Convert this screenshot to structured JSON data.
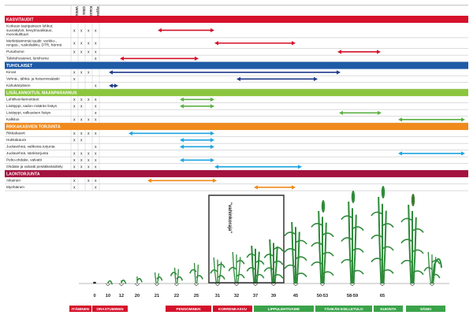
{
  "columns": [
    "Vehnä",
    "Ohra",
    "Kaura",
    "Syysviljat"
  ],
  "colors": {
    "kasvitaudit": "#d5112b",
    "tuholaiset": "#1f5aa6",
    "lisalannoitus": "#8cc63f",
    "rikkakasvien": "#f08a1c",
    "laontorjunta": "#a4123f",
    "arrow_red": "#d5112b",
    "arrow_navy": "#1f3a8a",
    "arrow_green": "#5bb043",
    "arrow_cyan": "#1ea5e0",
    "arrow_orange": "#f08a1c",
    "plant_green": "#2e8b3a"
  },
  "sections": [
    {
      "title": "KASVITAUDIT",
      "color_key": "kasvitaudit",
      "rows": [
        {
          "label": "Korkean tautipaineen lohkot:",
          "sub": [
            "suorakylvö, kevytmuokkaus,",
            "monokulttuuri"
          ],
          "marks": [
            1,
            1,
            1,
            1
          ],
          "arrows": [
            {
              "from": 200,
              "to": 272,
              "color": "arrow_red"
            }
          ]
        },
        {
          "label": "Merkittävimmät taudit: verkko-,",
          "sub": [
            "rengas-, ruskolaikku, DTR, härmä"
          ],
          "marks": [
            1,
            1,
            1,
            1
          ],
          "arrows": [
            {
              "from": 272,
              "to": 375,
              "color": "arrow_red"
            }
          ]
        },
        {
          "label": "Punahome",
          "sub": [],
          "marks": [
            1,
            1,
            1,
            1
          ],
          "arrows": [
            {
              "from": 428,
              "to": 483,
              "color": "arrow_red"
            }
          ]
        },
        {
          "label": "Talvituhosienet, lumihome",
          "sub": [],
          "marks": [
            0,
            0,
            0,
            1
          ],
          "arrows": [
            {
              "from": 152,
              "to": 252,
              "color": "arrow_red"
            }
          ]
        }
      ]
    },
    {
      "title": "TUHOLAISET",
      "color_key": "tuholaiset",
      "rows": [
        {
          "label": "Kirvat",
          "sub": [],
          "marks": [
            1,
            1,
            1,
            0
          ],
          "arrows": [
            {
              "from": 138,
              "to": 432,
              "color": "arrow_navy"
            }
          ]
        },
        {
          "label": "Vehnä-, tähkä- ja heiseninsääski",
          "sub": [],
          "marks": [
            1,
            0,
            0,
            0
          ],
          "arrows": [
            {
              "from": 300,
              "to": 403,
              "color": "arrow_navy"
            }
          ]
        },
        {
          "label": "Kahukärpänen",
          "sub": [],
          "marks": [
            0,
            0,
            0,
            1
          ],
          "arrows": [
            {
              "from": 138,
              "to": 150,
              "color": "arrow_navy"
            }
          ]
        }
      ]
    },
    {
      "title": "LISÄLANNOITUS, MAANPARANNUS",
      "color_key": "lisalannoitus",
      "rows": [
        {
          "label": "Lehtilivenlannoitteet",
          "sub": [],
          "marks": [
            1,
            1,
            1,
            1
          ],
          "arrows": [
            {
              "from": 228,
              "to": 272,
              "color": "arrow_green"
            }
          ]
        },
        {
          "label": "Lisätyppi, sadon määrän lisäys",
          "sub": [],
          "marks": [
            1,
            1,
            0,
            1
          ],
          "arrows": [
            {
              "from": 228,
              "to": 272,
              "color": "arrow_green"
            }
          ]
        },
        {
          "label": "Lisätyppi, valkuaisen lisäys",
          "sub": [],
          "marks": [
            0,
            0,
            0,
            1
          ],
          "arrows": [
            {
              "from": 430,
              "to": 484,
              "color": "arrow_green"
            }
          ]
        },
        {
          "label": "Kalkitus",
          "sub": [],
          "marks": [
            1,
            1,
            1,
            1
          ],
          "arrows": [
            {
              "from": 505,
              "to": 590,
              "color": "arrow_green"
            }
          ]
        }
      ]
    },
    {
      "title": "RIKKAKASVIEN TORJUNTA",
      "color_key": "rikkakasvien",
      "rows": [
        {
          "label": "Rikkakasvit",
          "sub": [],
          "marks": [
            1,
            1,
            1,
            1
          ],
          "arrows": [
            {
              "from": 163,
              "to": 272,
              "color": "arrow_cyan"
            }
          ]
        },
        {
          "label": "Hukkakaura",
          "sub": [],
          "marks": [
            1,
            1,
            0,
            0
          ],
          "arrows": [
            {
              "from": 228,
              "to": 272,
              "color": "arrow_cyan"
            }
          ]
        },
        {
          "label": "Juolavehnä, valikoiva torjunta",
          "sub": [],
          "marks": [
            0,
            0,
            0,
            1
          ],
          "arrows": [
            {
              "from": 228,
              "to": 272,
              "color": "arrow_cyan"
            }
          ]
        },
        {
          "label": "Juolavehnä, sänkitorjunta",
          "sub": [],
          "marks": [
            1,
            1,
            1,
            1
          ],
          "arrows": [
            {
              "from": 505,
              "to": 590,
              "color": "arrow_cyan"
            }
          ]
        },
        {
          "label": "Pelto-ohdake, valvatti",
          "sub": [],
          "marks": [
            1,
            1,
            1,
            1
          ],
          "arrows": [
            {
              "from": 228,
              "to": 272,
              "color": "arrow_cyan"
            }
          ]
        },
        {
          "label": "Ohdake ja valvatti pesäkkeäisittely",
          "sub": [],
          "marks": [
            1,
            1,
            1,
            1
          ],
          "arrows": [
            {
              "from": 272,
              "to": 383,
              "color": "arrow_cyan"
            }
          ]
        }
      ]
    },
    {
      "title": "LAONTORJUNTA",
      "color_key": "laontorjunta",
      "rows": [
        {
          "label": "Aikainen",
          "sub": [],
          "marks": [
            1,
            0,
            1,
            1
          ],
          "arrows": [
            {
              "from": 187,
              "to": 275,
              "color": "arrow_orange"
            }
          ]
        },
        {
          "label": "Myöhäinen",
          "sub": [],
          "marks": [
            1,
            0,
            0,
            1
          ],
          "arrows": [
            {
              "from": 322,
              "to": 375,
              "color": "arrow_orange"
            }
          ]
        }
      ]
    }
  ],
  "mark_symbol": "x",
  "stages": [
    "0",
    "10",
    "12",
    "20",
    "21",
    "22",
    "25",
    "31",
    "32",
    "37",
    "39",
    "45",
    "50-53",
    "58-59",
    "65"
  ],
  "stage_x": [
    120,
    137,
    154,
    174,
    199,
    224,
    249,
    276,
    300,
    324,
    347,
    375,
    409,
    447,
    485
  ],
  "phases": [
    {
      "label": "ITÄMINEN",
      "from": 88,
      "to": 116,
      "color": "#d5112b"
    },
    {
      "label": "ORASTUMINEN",
      "from": 117,
      "to": 162,
      "color": "#d5112b"
    },
    {
      "label": "PENSOMINEN",
      "from": 210,
      "to": 268,
      "color": "#d5112b"
    },
    {
      "label": "KORRENKASVU",
      "from": 270,
      "to": 320,
      "color": "#d5112b"
    },
    {
      "label": "LIPPULEHTIVAIHE",
      "from": 322,
      "to": 398,
      "color": "#3aa34a"
    },
    {
      "label": "TÄHKÄN ESILLETULO",
      "from": 400,
      "to": 472,
      "color": "#3aa34a"
    },
    {
      "label": "KUKINTA",
      "from": 474,
      "to": 511,
      "color": "#3aa34a"
    },
    {
      "label": "SÄNKI",
      "from": 515,
      "to": 565,
      "color": "#3aa34a"
    }
  ],
  "callout": "\"vahinkoraja\"",
  "plant_heights": [
    0,
    2,
    4,
    9,
    14,
    20,
    26,
    33,
    40,
    48,
    56,
    78,
    92,
    104,
    110,
    100,
    40
  ]
}
